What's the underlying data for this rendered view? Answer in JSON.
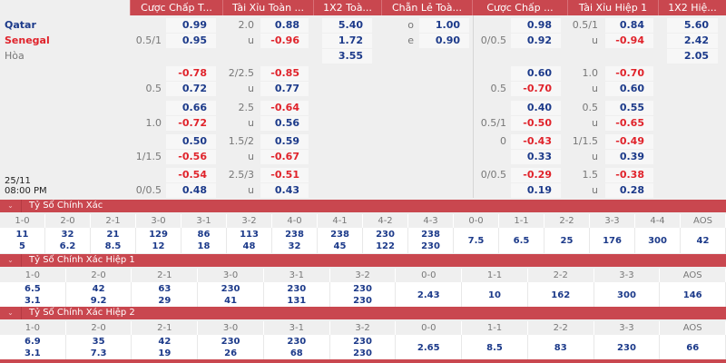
{
  "header": {
    "columns": [
      "Cược Chấp T...",
      "Tài Xỉu Toàn ...",
      "1X2 Toà...",
      "Chẵn Lẻ Toà...",
      "Cược Chấp ...",
      "Tài Xỉu Hiệp 1",
      "1X2 Hiệ..."
    ]
  },
  "match": {
    "date": "25/11",
    "time": "08:00 PM"
  },
  "blocks": [
    {
      "rows": [
        {
          "team": "Qatar",
          "team_style": "home",
          "hdp_odds": "0.99",
          "ou_line": "2.0",
          "ou_odds": "0.88",
          "x12": "5.40",
          "oe_label": "o",
          "oe_odds": "1.00",
          "h1_hdp_odds": "0.98",
          "h1_ou_line": "0.5/1",
          "h1_ou_odds": "0.84",
          "h1_x12": "5.60"
        },
        {
          "team": "Senegal",
          "team_style": "away",
          "hdp_line": "0.5/1",
          "hdp_odds": "0.95",
          "ou_line": "u",
          "ou_odds": "-0.96",
          "x12": "1.72",
          "oe_label": "e",
          "oe_odds": "0.90",
          "h1_hdp_line": "0/0.5",
          "h1_hdp_odds": "0.92",
          "h1_ou_line": "u",
          "h1_ou_odds": "-0.94",
          "h1_x12": "2.42"
        },
        {
          "team": "Hòa",
          "team_style": "draw",
          "x12": "3.55",
          "h1_x12": "2.05"
        }
      ]
    },
    {
      "rows": [
        {
          "hdp_odds": "-0.78",
          "ou_line": "2/2.5",
          "ou_odds": "-0.85",
          "h1_hdp_odds": "0.60",
          "h1_ou_line": "1.0",
          "h1_ou_odds": "-0.70"
        },
        {
          "hdp_line": "0.5",
          "hdp_odds": "0.72",
          "ou_line": "u",
          "ou_odds": "0.77",
          "h1_hdp_line": "0.5",
          "h1_hdp_odds": "-0.70",
          "h1_ou_line": "u",
          "h1_ou_odds": "0.60"
        }
      ]
    },
    {
      "rows": [
        {
          "hdp_odds": "0.66",
          "ou_line": "2.5",
          "ou_odds": "-0.64",
          "h1_hdp_odds": "0.40",
          "h1_ou_line": "0.5",
          "h1_ou_odds": "0.55"
        },
        {
          "hdp_line": "1.0",
          "hdp_odds": "-0.72",
          "ou_line": "u",
          "ou_odds": "0.56",
          "h1_hdp_line": "0.5/1",
          "h1_hdp_odds": "-0.50",
          "h1_ou_line": "u",
          "h1_ou_odds": "-0.65"
        }
      ]
    },
    {
      "rows": [
        {
          "hdp_odds": "0.50",
          "ou_line": "1.5/2",
          "ou_odds": "0.59",
          "h1_hdp_line": "0",
          "h1_hdp_odds": "-0.43",
          "h1_ou_line": "1/1.5",
          "h1_ou_odds": "-0.49"
        },
        {
          "hdp_line": "1/1.5",
          "hdp_odds": "-0.56",
          "ou_line": "u",
          "ou_odds": "-0.67",
          "h1_hdp_odds": "0.33",
          "h1_ou_line": "u",
          "h1_ou_odds": "0.39"
        }
      ]
    },
    {
      "rows": [
        {
          "hdp_odds": "-0.54",
          "ou_line": "2.5/3",
          "ou_odds": "-0.51",
          "h1_hdp_line": "0/0.5",
          "h1_hdp_odds": "-0.29",
          "h1_ou_line": "1.5",
          "h1_ou_odds": "-0.38"
        },
        {
          "hdp_line": "0/0.5",
          "hdp_odds": "0.48",
          "ou_line": "u",
          "ou_odds": "0.43",
          "h1_hdp_odds": "0.19",
          "h1_ou_line": "u",
          "h1_ou_odds": "0.28"
        }
      ]
    }
  ],
  "sections": [
    {
      "title": "Tỷ Số Chính Xác",
      "columns": [
        {
          "score": "1-0",
          "values": [
            "11",
            "5"
          ]
        },
        {
          "score": "2-0",
          "values": [
            "32",
            "6.2"
          ]
        },
        {
          "score": "2-1",
          "values": [
            "21",
            "8.5"
          ]
        },
        {
          "score": "3-0",
          "values": [
            "129",
            "12"
          ]
        },
        {
          "score": "3-1",
          "values": [
            "86",
            "18"
          ]
        },
        {
          "score": "3-2",
          "values": [
            "113",
            "48"
          ]
        },
        {
          "score": "4-0",
          "values": [
            "238",
            "32"
          ]
        },
        {
          "score": "4-1",
          "values": [
            "238",
            "45"
          ]
        },
        {
          "score": "4-2",
          "values": [
            "230",
            "122"
          ]
        },
        {
          "score": "4-3",
          "values": [
            "238",
            "230"
          ]
        },
        {
          "score": "0-0",
          "values": [
            "7.5"
          ]
        },
        {
          "score": "1-1",
          "values": [
            "6.5"
          ]
        },
        {
          "score": "2-2",
          "values": [
            "25"
          ]
        },
        {
          "score": "3-3",
          "values": [
            "176"
          ]
        },
        {
          "score": "4-4",
          "values": [
            "300"
          ]
        },
        {
          "score": "AOS",
          "values": [
            "42"
          ]
        }
      ]
    },
    {
      "title": "Tỷ Số Chính Xác Hiệp 1",
      "columns": [
        {
          "score": "1-0",
          "values": [
            "6.5",
            "3.1"
          ]
        },
        {
          "score": "2-0",
          "values": [
            "42",
            "9.2"
          ]
        },
        {
          "score": "2-1",
          "values": [
            "63",
            "29"
          ]
        },
        {
          "score": "3-0",
          "values": [
            "230",
            "41"
          ]
        },
        {
          "score": "3-1",
          "values": [
            "230",
            "131"
          ]
        },
        {
          "score": "3-2",
          "values": [
            "230",
            "230"
          ]
        },
        {
          "score": "0-0",
          "values": [
            "2.43"
          ]
        },
        {
          "score": "1-1",
          "values": [
            "10"
          ]
        },
        {
          "score": "2-2",
          "values": [
            "162"
          ]
        },
        {
          "score": "3-3",
          "values": [
            "300"
          ]
        },
        {
          "score": "AOS",
          "values": [
            "146"
          ]
        }
      ]
    },
    {
      "title": "Tỷ Số Chính Xác Hiệp 2",
      "columns": [
        {
          "score": "1-0",
          "values": [
            "6.9",
            "3.1"
          ]
        },
        {
          "score": "2-0",
          "values": [
            "35",
            "7.3"
          ]
        },
        {
          "score": "2-1",
          "values": [
            "42",
            "19"
          ]
        },
        {
          "score": "3-0",
          "values": [
            "230",
            "26"
          ]
        },
        {
          "score": "3-1",
          "values": [
            "230",
            "68"
          ]
        },
        {
          "score": "3-2",
          "values": [
            "230",
            "230"
          ]
        },
        {
          "score": "0-0",
          "values": [
            "2.65"
          ]
        },
        {
          "score": "1-1",
          "values": [
            "8.5"
          ]
        },
        {
          "score": "2-2",
          "values": [
            "83"
          ]
        },
        {
          "score": "3-3",
          "values": [
            "230"
          ]
        },
        {
          "score": "AOS",
          "values": [
            "66"
          ]
        }
      ]
    }
  ],
  "colors": {
    "header": "#c9474f",
    "positive": "#1c3a8a",
    "negative": "#e0232b"
  }
}
